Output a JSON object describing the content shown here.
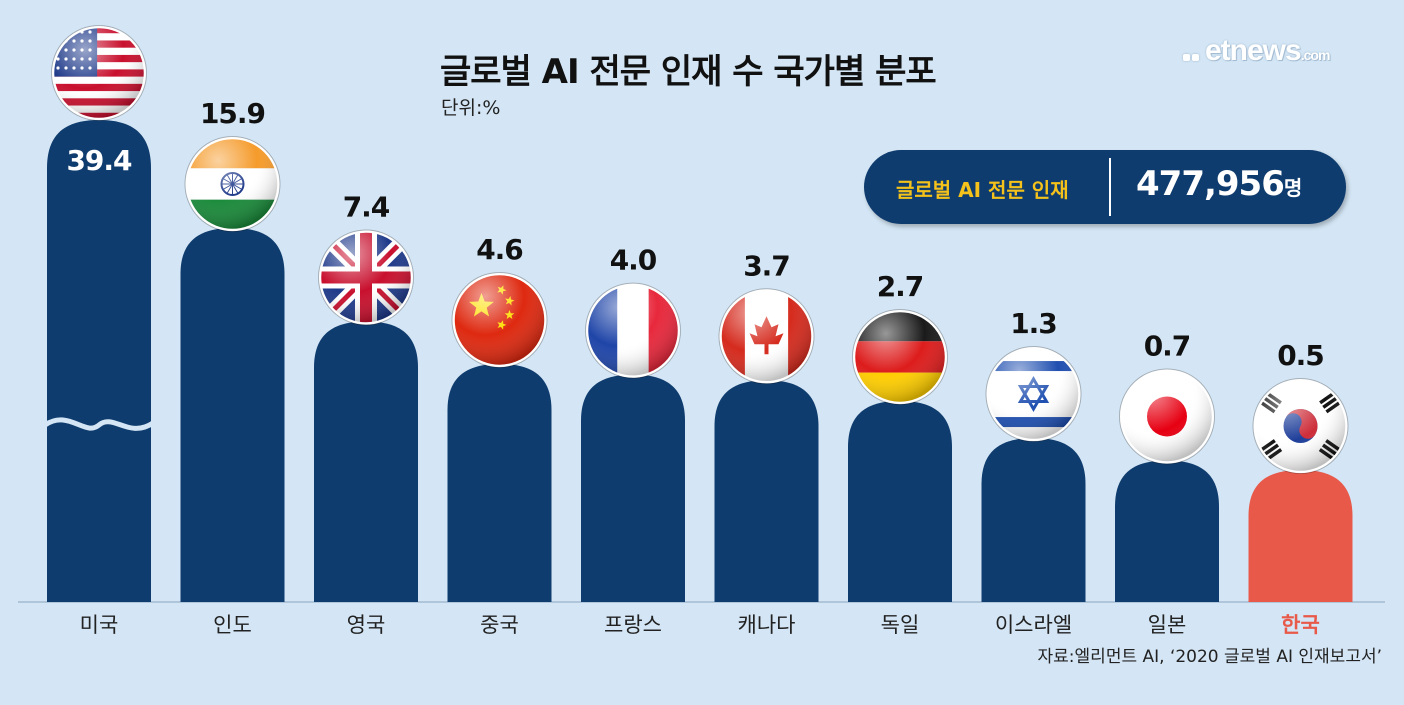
{
  "header": {
    "title": "글로벌 AI 전문 인재 수 국가별 분포",
    "unit": "단위:%"
  },
  "logo": {
    "text": "etnews",
    "sub": ".com"
  },
  "total": {
    "label": "글로벌 AI 전문 인재",
    "value": "477,956",
    "unit": "명"
  },
  "source": "자료:엘리먼트 AI, ‘2020 글로벌 AI 인재보고서’",
  "colors": {
    "background": "#d4e6f5",
    "bar": "#0f3c6e",
    "highlight_bar": "#e8594a",
    "highlight_text": "#e8594a",
    "total_label": "#f4c21a"
  },
  "chart_data": {
    "type": "bar",
    "categories": [
      "미국",
      "인도",
      "영국",
      "중국",
      "프랑스",
      "캐나다",
      "독일",
      "이스라엘",
      "일본",
      "한국"
    ],
    "values": [
      39.4,
      15.9,
      7.4,
      4.6,
      4.0,
      3.7,
      2.7,
      1.3,
      0.7,
      0.5
    ],
    "value_labels": [
      "39.4",
      "15.9",
      "7.4",
      "4.6",
      "4.0",
      "3.7",
      "2.7",
      "1.3",
      "0.7",
      "0.5"
    ],
    "flags": [
      "usa-flag-icon",
      "india-flag-icon",
      "uk-flag-icon",
      "china-flag-icon",
      "france-flag-icon",
      "canada-flag-icon",
      "germany-flag-icon",
      "israel-flag-icon",
      "japan-flag-icon",
      "korea-flag-icon"
    ],
    "highlight": "한국",
    "axis_break": "미국",
    "grid": false,
    "legend": "none"
  }
}
